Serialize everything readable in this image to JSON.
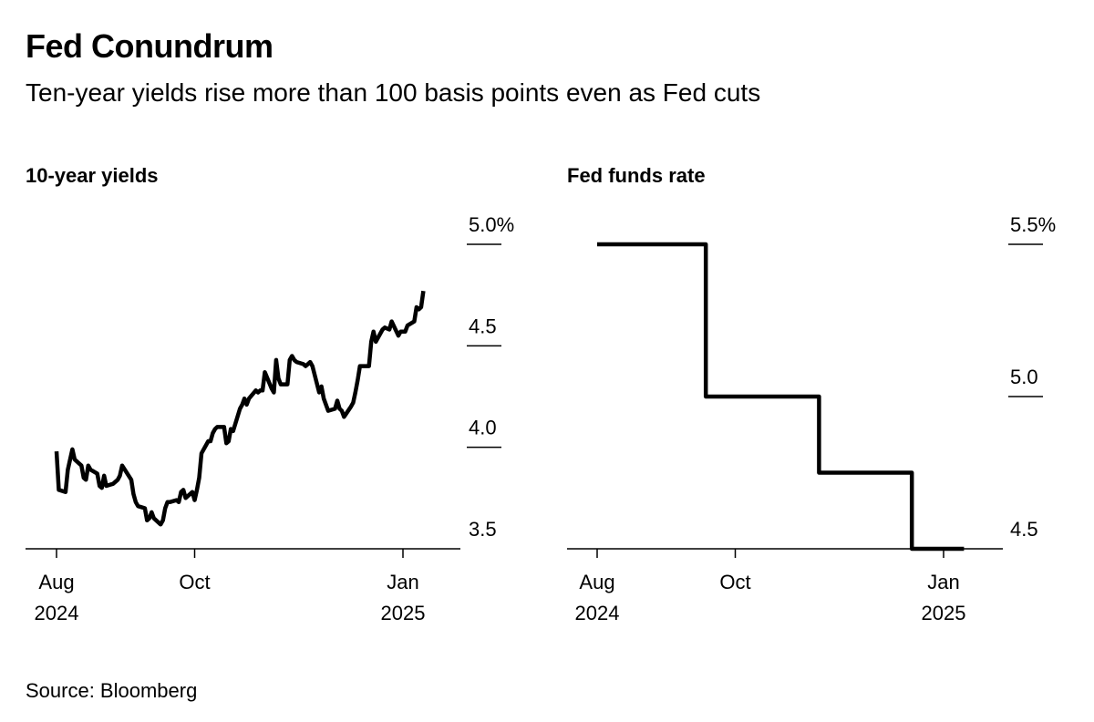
{
  "title": "Fed Conundrum",
  "subtitle": "Ten-year yields rise more than 100 basis points even as Fed cuts",
  "source": "Source: Bloomberg",
  "colors": {
    "line": "#000000",
    "axis": "#000000",
    "background": "#ffffff"
  },
  "chart_data": [
    {
      "type": "line",
      "title": "10-year yields",
      "ylim": [
        3.5,
        5.0
      ],
      "y_ticks": [
        {
          "value": 5.0,
          "label": "5.0%"
        },
        {
          "value": 4.5,
          "label": "4.5"
        },
        {
          "value": 4.0,
          "label": "4.0"
        },
        {
          "value": 3.5,
          "label": "3.5"
        }
      ],
      "x_ticks": [
        {
          "date": "2024-08-01",
          "line1": "Aug",
          "line2": "2024"
        },
        {
          "date": "2024-10-01",
          "line1": "Oct",
          "line2": ""
        },
        {
          "date": "2025-01-01",
          "line1": "Jan",
          "line2": "2025"
        }
      ],
      "xlim": [
        "2024-07-26",
        "2025-01-30"
      ],
      "grid": false,
      "series": [
        {
          "x": [
            "2024-08-01",
            "2024-08-02",
            "2024-08-05",
            "2024-08-06",
            "2024-08-07",
            "2024-08-08",
            "2024-08-09",
            "2024-08-12",
            "2024-08-13",
            "2024-08-14",
            "2024-08-15",
            "2024-08-16",
            "2024-08-19",
            "2024-08-20",
            "2024-08-21",
            "2024-08-22",
            "2024-08-23",
            "2024-08-26",
            "2024-08-27",
            "2024-08-28",
            "2024-08-29",
            "2024-08-30",
            "2024-09-03",
            "2024-09-04",
            "2024-09-05",
            "2024-09-06",
            "2024-09-09",
            "2024-09-10",
            "2024-09-11",
            "2024-09-12",
            "2024-09-13",
            "2024-09-16",
            "2024-09-17",
            "2024-09-18",
            "2024-09-19",
            "2024-09-20",
            "2024-09-23",
            "2024-09-24",
            "2024-09-25",
            "2024-09-26",
            "2024-09-27",
            "2024-09-30",
            "2024-10-01",
            "2024-10-02",
            "2024-10-03",
            "2024-10-04",
            "2024-10-07",
            "2024-10-08",
            "2024-10-09",
            "2024-10-10",
            "2024-10-11",
            "2024-10-14",
            "2024-10-15",
            "2024-10-16",
            "2024-10-17",
            "2024-10-18",
            "2024-10-21",
            "2024-10-22",
            "2024-10-23",
            "2024-10-24",
            "2024-10-25",
            "2024-10-28",
            "2024-10-29",
            "2024-10-30",
            "2024-10-31",
            "2024-11-01",
            "2024-11-04",
            "2024-11-05",
            "2024-11-06",
            "2024-11-07",
            "2024-11-08",
            "2024-11-11",
            "2024-11-12",
            "2024-11-13",
            "2024-11-14",
            "2024-11-15",
            "2024-11-18",
            "2024-11-19",
            "2024-11-20",
            "2024-11-21",
            "2024-11-22",
            "2024-11-25",
            "2024-11-26",
            "2024-11-27",
            "2024-11-29",
            "2024-12-02",
            "2024-12-03",
            "2024-12-04",
            "2024-12-05",
            "2024-12-06",
            "2024-12-09",
            "2024-12-10",
            "2024-12-11",
            "2024-12-12",
            "2024-12-13",
            "2024-12-16",
            "2024-12-17",
            "2024-12-18",
            "2024-12-19",
            "2024-12-20",
            "2024-12-23",
            "2024-12-24",
            "2024-12-26",
            "2024-12-27",
            "2024-12-30",
            "2024-12-31",
            "2025-01-02",
            "2025-01-03",
            "2025-01-06",
            "2025-01-07",
            "2025-01-08",
            "2025-01-09",
            "2025-01-10"
          ],
          "y": [
            3.98,
            3.79,
            3.78,
            3.89,
            3.94,
            3.99,
            3.94,
            3.91,
            3.85,
            3.84,
            3.91,
            3.89,
            3.87,
            3.81,
            3.8,
            3.86,
            3.81,
            3.82,
            3.83,
            3.84,
            3.86,
            3.91,
            3.84,
            3.77,
            3.73,
            3.71,
            3.7,
            3.64,
            3.65,
            3.68,
            3.65,
            3.62,
            3.64,
            3.7,
            3.73,
            3.73,
            3.74,
            3.73,
            3.78,
            3.79,
            3.75,
            3.78,
            3.74,
            3.79,
            3.85,
            3.97,
            4.03,
            4.03,
            4.07,
            4.09,
            4.1,
            4.1,
            4.02,
            4.03,
            4.09,
            4.08,
            4.19,
            4.21,
            4.24,
            4.21,
            4.24,
            4.28,
            4.27,
            4.28,
            4.28,
            4.37,
            4.29,
            4.27,
            4.43,
            4.34,
            4.31,
            4.31,
            4.43,
            4.45,
            4.43,
            4.42,
            4.41,
            4.4,
            4.41,
            4.42,
            4.4,
            4.27,
            4.3,
            4.24,
            4.18,
            4.19,
            4.23,
            4.19,
            4.18,
            4.15,
            4.2,
            4.22,
            4.27,
            4.33,
            4.4,
            4.4,
            4.4,
            4.52,
            4.57,
            4.52,
            4.58,
            4.59,
            4.58,
            4.62,
            4.55,
            4.57,
            4.57,
            4.6,
            4.62,
            4.69,
            4.68,
            4.69,
            4.77
          ]
        }
      ]
    },
    {
      "type": "line",
      "title": "Fed funds rate",
      "ylim": [
        4.5,
        5.5
      ],
      "y_ticks": [
        {
          "value": 5.5,
          "label": "5.5%"
        },
        {
          "value": 5.0,
          "label": "5.0"
        },
        {
          "value": 4.5,
          "label": "4.5"
        }
      ],
      "x_ticks": [
        {
          "date": "2024-08-01",
          "line1": "Aug",
          "line2": "2024"
        },
        {
          "date": "2024-10-01",
          "line1": "Oct",
          "line2": ""
        },
        {
          "date": "2025-01-01",
          "line1": "Jan",
          "line2": "2025"
        }
      ],
      "xlim": [
        "2024-07-26",
        "2025-01-30"
      ],
      "grid": false,
      "series": [
        {
          "x": [
            "2024-08-01",
            "2024-09-18",
            "2024-09-18",
            "2024-11-07",
            "2024-11-07",
            "2024-12-18",
            "2024-12-18",
            "2025-01-10"
          ],
          "y": [
            5.5,
            5.5,
            5.0,
            5.0,
            4.75,
            4.75,
            4.5,
            4.5
          ]
        }
      ]
    }
  ]
}
